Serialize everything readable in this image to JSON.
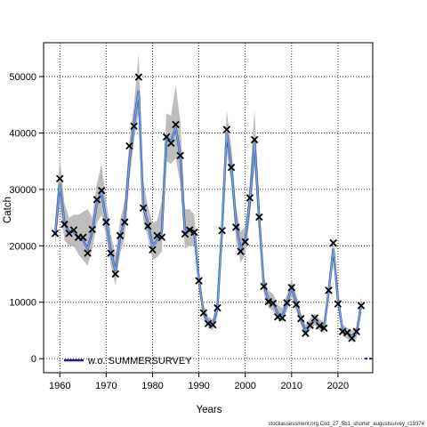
{
  "chart_data": {
    "type": "line",
    "xlabel": "Years",
    "ylabel": "Catch",
    "xlim": [
      1956.5,
      2027.5
    ],
    "ylim": [
      -2500,
      56000
    ],
    "x_ticks": [
      1960,
      1970,
      1980,
      1990,
      2000,
      2010,
      2020
    ],
    "y_ticks": [
      0,
      10000,
      20000,
      30000,
      40000,
      50000
    ],
    "grid": true,
    "legend_position": "bottom-left",
    "footnote": "stockassessment.org,Cod_27_5b1_shorter_augustsurvey_r19374",
    "colors": {
      "fit_line": "#6fa8dc",
      "alt_line": "#1c1c8c",
      "band": "#bdbdbd",
      "observed_marker": "#000000"
    },
    "series": [
      {
        "name": "w.o. SUMMERSURVEY",
        "x": [
          1959,
          1960,
          1961,
          1962,
          1963,
          1964,
          1965,
          1966,
          1967,
          1968,
          1969,
          1970,
          1971,
          1972,
          1973,
          1974,
          1975,
          1976,
          1977,
          1978,
          1979,
          1980,
          1981,
          1982,
          1983,
          1984,
          1985,
          1986,
          1987,
          1988,
          1989,
          1990,
          1991,
          1992,
          1993,
          1994,
          1995,
          1996,
          1997,
          1998,
          1999,
          2000,
          2001,
          2002,
          2003,
          2004,
          2005,
          2006,
          2007,
          2008,
          2009,
          2010,
          2011,
          2012,
          2013,
          2014,
          2015,
          2016,
          2017,
          2018,
          2019,
          2020,
          2021,
          2022,
          2023,
          2024,
          2025
        ],
        "values": [
          22000,
          31000,
          24000,
          22500,
          22500,
          21500,
          21000,
          19500,
          22500,
          27500,
          29500,
          24500,
          19000,
          15500,
          21500,
          24500,
          35000,
          41500,
          47500,
          27000,
          24000,
          20000,
          21000,
          22500,
          39000,
          38500,
          41000,
          36000,
          22500,
          23000,
          22500,
          14000,
          8000,
          6500,
          6000,
          9000,
          23000,
          40000,
          34000,
          24000,
          19500,
          21000,
          28000,
          38500,
          25000,
          13000,
          10500,
          10000,
          8000,
          7500,
          10000,
          12500,
          10000,
          7000,
          5000,
          6000,
          7000,
          6000,
          5500,
          12000,
          19500,
          10500,
          5000,
          4500,
          4000,
          4500,
          9500
        ]
      }
    ],
    "band": {
      "upper": [
        24000,
        35500,
        27500,
        25000,
        25500,
        25500,
        26000,
        26500,
        25000,
        31000,
        34500,
        28000,
        22000,
        18500,
        24500,
        28000,
        38500,
        45000,
        54000,
        31500,
        27000,
        24000,
        24500,
        28000,
        43500,
        43000,
        48500,
        42000,
        26500,
        26500,
        25500,
        15500,
        9500,
        7500,
        7000,
        10500,
        25500,
        44000,
        37500,
        27000,
        22500,
        23500,
        31500,
        44000,
        28500,
        14500,
        12000,
        11500,
        9500,
        9000,
        11500,
        14000,
        11500,
        8000,
        6000,
        7000,
        8000,
        7000,
        6500,
        13500,
        21500,
        12000,
        6000,
        5500,
        5000,
        5500,
        11000
      ],
      "lower": [
        20000,
        27000,
        21000,
        20000,
        20000,
        18500,
        17500,
        16500,
        19500,
        24000,
        25500,
        21500,
        16500,
        13000,
        18500,
        21500,
        31500,
        38500,
        43500,
        24500,
        21500,
        17500,
        18000,
        19000,
        35000,
        34500,
        35500,
        31000,
        19500,
        20000,
        20000,
        12500,
        7000,
        5500,
        5000,
        7500,
        21000,
        36500,
        31000,
        21000,
        17000,
        18500,
        25000,
        34000,
        22000,
        11500,
        9000,
        8500,
        7000,
        6500,
        8500,
        11000,
        8500,
        6000,
        4000,
        5000,
        6000,
        5000,
        4500,
        10500,
        17500,
        9500,
        4000,
        3500,
        3000,
        3500,
        8000
      ]
    },
    "observed": {
      "x": [
        1959,
        1960,
        1961,
        1962,
        1963,
        1964,
        1965,
        1966,
        1967,
        1968,
        1969,
        1970,
        1971,
        1972,
        1973,
        1974,
        1975,
        1976,
        1977,
        1978,
        1979,
        1980,
        1981,
        1982,
        1983,
        1984,
        1985,
        1986,
        1987,
        1988,
        1989,
        1990,
        1991,
        1992,
        1993,
        1994,
        1995,
        1996,
        1997,
        1998,
        1999,
        2000,
        2001,
        2002,
        2003,
        2004,
        2005,
        2006,
        2007,
        2008,
        2009,
        2010,
        2011,
        2012,
        2013,
        2014,
        2015,
        2016,
        2017,
        2018,
        2019,
        2020,
        2021,
        2022,
        2023,
        2024,
        2025
      ],
      "y": [
        22200,
        31900,
        23800,
        22200,
        22800,
        21500,
        21500,
        18700,
        22900,
        28200,
        29800,
        24200,
        18700,
        15000,
        21800,
        24200,
        37700,
        41200,
        49900,
        26700,
        23500,
        19300,
        21800,
        21500,
        39300,
        38200,
        41500,
        36000,
        22100,
        22800,
        22400,
        13800,
        8100,
        6200,
        6000,
        9000,
        22700,
        40600,
        33900,
        23300,
        19000,
        20700,
        28500,
        38800,
        25100,
        12800,
        10100,
        9800,
        7400,
        7200,
        9900,
        12600,
        9600,
        7100,
        4500,
        5900,
        7200,
        5800,
        5400,
        12100,
        20500,
        9700,
        4800,
        4600,
        3600,
        4800,
        9400
      ]
    }
  }
}
